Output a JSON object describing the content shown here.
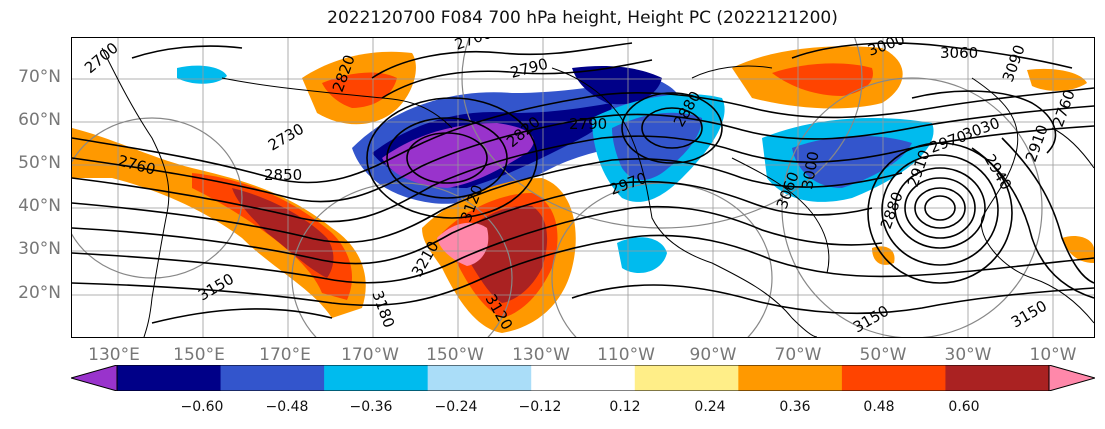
{
  "title": "2022120700 F084 700 hPa height, Height PC (2022121200)",
  "lat_labels": [
    "70°N",
    "60°N",
    "50°N",
    "40°N",
    "30°N",
    "20°N"
  ],
  "lon_labels": [
    "130°E",
    "150°E",
    "170°E",
    "170°W",
    "150°W",
    "130°W",
    "110°W",
    "90°W",
    "70°W",
    "50°W",
    "30°W",
    "10°W"
  ],
  "colorbar": {
    "ticks": [
      "−0.60",
      "−0.48",
      "−0.36",
      "−0.24",
      "−0.12",
      "0.12",
      "0.24",
      "0.36",
      "0.48",
      "0.60"
    ],
    "colors": [
      "#9933cc",
      "#000088",
      "#3355cc",
      "#00bbee",
      "#aaddf8",
      "#ffffff",
      "#ffee88",
      "#ff9900",
      "#ff4400",
      "#aa2222",
      "#ff88aa"
    ]
  },
  "contour_labels": [
    "2700",
    "2700",
    "2790",
    "2790",
    "2820",
    "2880",
    "2760",
    "2730",
    "2850",
    "2820",
    "2970",
    "2970",
    "3000",
    "3060",
    "3030",
    "2910",
    "2940",
    "2760",
    "3090",
    "3120",
    "3150",
    "3180",
    "3210",
    "3150",
    "3120",
    "3150",
    "3060",
    "3000",
    "2910",
    "2880"
  ]
}
